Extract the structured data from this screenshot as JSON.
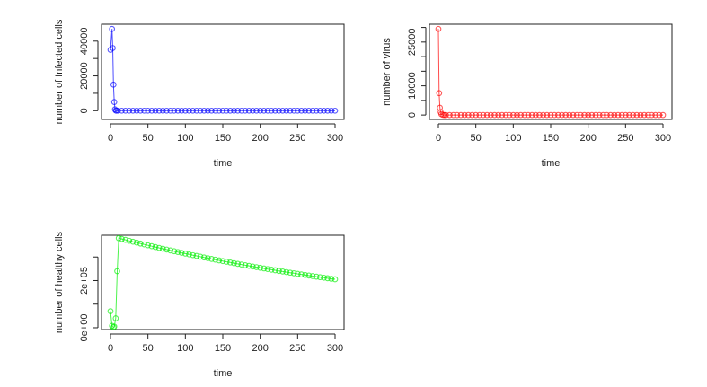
{
  "chart_data": [
    {
      "type": "line",
      "marker": "open-circle",
      "color": "#0000ff",
      "xlabel": "time",
      "ylabel": "number of Infected cells",
      "xlim": [
        -12,
        312
      ],
      "ylim": [
        -5000,
        49700
      ],
      "xticks": [
        0,
        50,
        100,
        150,
        200,
        250,
        300
      ],
      "xtick_labels": [
        "0",
        "50",
        "100",
        "150",
        "200",
        "250",
        "300"
      ],
      "yticks": [
        0,
        10000,
        20000,
        30000,
        40000
      ],
      "ytick_labels": [
        "0",
        "",
        "20000",
        "",
        "40000"
      ],
      "x": [
        0,
        2,
        3,
        4,
        5,
        6,
        7,
        8,
        10,
        15,
        20,
        25,
        30,
        35,
        40,
        45,
        50,
        55,
        60,
        65,
        70,
        75,
        80,
        85,
        90,
        95,
        100,
        105,
        110,
        115,
        120,
        125,
        130,
        135,
        140,
        145,
        150,
        155,
        160,
        165,
        170,
        175,
        180,
        185,
        190,
        195,
        200,
        205,
        210,
        215,
        220,
        225,
        230,
        235,
        240,
        245,
        250,
        255,
        260,
        265,
        270,
        275,
        280,
        285,
        290,
        295,
        300
      ],
      "y": [
        35000,
        47000,
        36000,
        15000,
        5000,
        800,
        100,
        0,
        0,
        0,
        0,
        0,
        0,
        0,
        0,
        0,
        0,
        0,
        0,
        0,
        0,
        0,
        0,
        0,
        0,
        0,
        0,
        0,
        0,
        0,
        0,
        0,
        0,
        0,
        0,
        0,
        0,
        0,
        0,
        0,
        0,
        0,
        0,
        0,
        0,
        0,
        0,
        0,
        0,
        0,
        0,
        0,
        0,
        0,
        0,
        0,
        0,
        0,
        0,
        0,
        0,
        0,
        0,
        0,
        0,
        0,
        0
      ]
    },
    {
      "type": "line",
      "marker": "open-circle",
      "color": "#ff0000",
      "xlabel": "time",
      "ylabel": "number of virus",
      "xlim": [
        -12,
        312
      ],
      "ylim": [
        -1500,
        31100
      ],
      "xticks": [
        0,
        50,
        100,
        150,
        200,
        250,
        300
      ],
      "xtick_labels": [
        "0",
        "50",
        "100",
        "150",
        "200",
        "250",
        "300"
      ],
      "yticks": [
        0,
        5000,
        10000,
        15000,
        20000,
        25000,
        30000
      ],
      "ytick_labels": [
        "0",
        "",
        "10000",
        "",
        "",
        "25000",
        ""
      ],
      "x": [
        0,
        1,
        2,
        3,
        4,
        6,
        8,
        10,
        15,
        20,
        25,
        30,
        35,
        40,
        45,
        50,
        55,
        60,
        65,
        70,
        75,
        80,
        85,
        90,
        95,
        100,
        105,
        110,
        115,
        120,
        125,
        130,
        135,
        140,
        145,
        150,
        155,
        160,
        165,
        170,
        175,
        180,
        185,
        190,
        195,
        200,
        205,
        210,
        215,
        220,
        225,
        230,
        235,
        240,
        245,
        250,
        255,
        260,
        265,
        270,
        275,
        280,
        285,
        290,
        295,
        300
      ],
      "y": [
        29500,
        7500,
        2500,
        1000,
        300,
        50,
        0,
        0,
        0,
        0,
        0,
        0,
        0,
        0,
        0,
        0,
        0,
        0,
        0,
        0,
        0,
        0,
        0,
        0,
        0,
        0,
        0,
        0,
        0,
        0,
        0,
        0,
        0,
        0,
        0,
        0,
        0,
        0,
        0,
        0,
        0,
        0,
        0,
        0,
        0,
        0,
        0,
        0,
        0,
        0,
        0,
        0,
        0,
        0,
        0,
        0,
        0,
        0,
        0,
        0,
        0,
        0,
        0,
        0,
        0,
        0
      ]
    },
    {
      "type": "line",
      "marker": "open-circle",
      "color": "#00ee00",
      "xlabel": "time",
      "ylabel": "number of healthy cells",
      "xlim": [
        -12,
        312
      ],
      "ylim": [
        -7700,
        392300
      ],
      "xticks": [
        0,
        50,
        100,
        150,
        200,
        250,
        300
      ],
      "xtick_labels": [
        "0",
        "50",
        "100",
        "150",
        "200",
        "250",
        "300"
      ],
      "yticks": [
        0,
        100000,
        200000,
        300000
      ],
      "ytick_labels": [
        "0e+00",
        "",
        "2e+05",
        ""
      ],
      "x": [
        0,
        2,
        4,
        5,
        7,
        9,
        11,
        15,
        20,
        25,
        30,
        35,
        40,
        45,
        50,
        55,
        60,
        65,
        70,
        75,
        80,
        85,
        90,
        95,
        100,
        105,
        110,
        115,
        120,
        125,
        130,
        135,
        140,
        145,
        150,
        155,
        160,
        165,
        170,
        175,
        180,
        185,
        190,
        195,
        200,
        205,
        210,
        215,
        220,
        225,
        230,
        235,
        240,
        245,
        250,
        255,
        260,
        265,
        270,
        275,
        280,
        285,
        290,
        295,
        300
      ],
      "y": [
        70000,
        8000,
        2000,
        5000,
        40000,
        240000,
        380000,
        376800,
        372800,
        368800,
        364900,
        361100,
        357200,
        353500,
        349700,
        346000,
        342400,
        338700,
        335200,
        331600,
        328100,
        324600,
        321200,
        317800,
        314400,
        311100,
        307800,
        304600,
        301300,
        298100,
        295000,
        291900,
        288800,
        285700,
        282700,
        279700,
        276800,
        273800,
        270900,
        268100,
        265200,
        262400,
        259600,
        256900,
        254200,
        251500,
        248800,
        246200,
        243600,
        241000,
        238500,
        235900,
        233400,
        231000,
        228500,
        226100,
        223700,
        221400,
        219000,
        216700,
        214400,
        212100,
        209900,
        207700,
        205500
      ]
    }
  ]
}
